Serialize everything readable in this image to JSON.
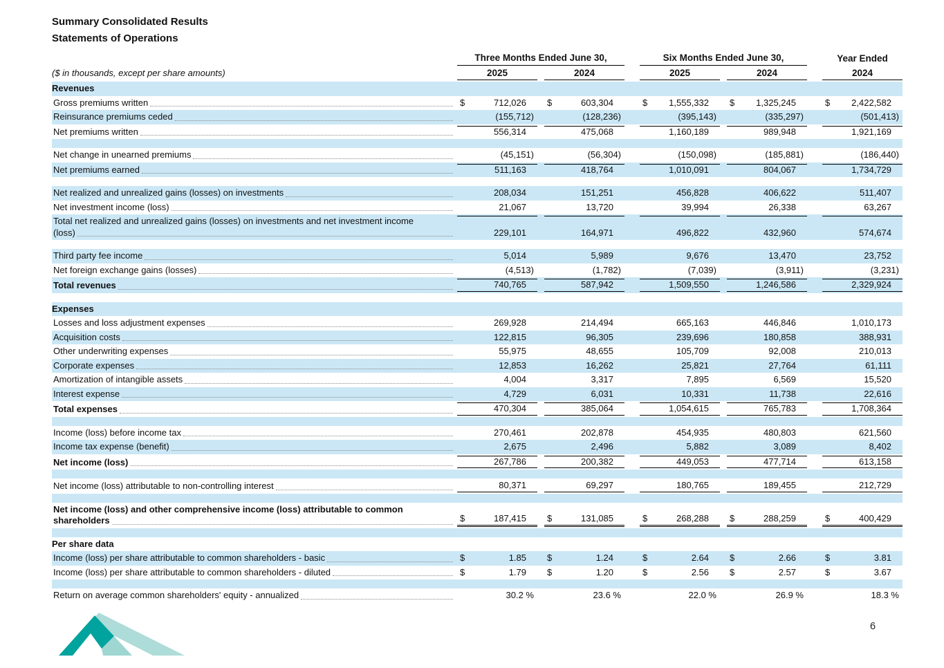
{
  "page": {
    "number": "6"
  },
  "header": {
    "title_line1": "Summary Consolidated Results",
    "title_line2": "Statements of Operations"
  },
  "colors": {
    "stripe": "#cbe7f5",
    "logo_dark": "#00a39d",
    "logo_light": "#9fd6d2"
  },
  "footer": {
    "logo": "mountain-logo"
  },
  "table": {
    "currency": "$",
    "note": "($ in thousands, except per share amounts)",
    "col_groups": [
      {
        "label": "Three Months Ended June 30,",
        "years": [
          "2025",
          "2024"
        ]
      },
      {
        "label": "Six Months Ended June 30,",
        "years": [
          "2025",
          "2024"
        ]
      },
      {
        "label": "Year Ended",
        "years": [
          "2024"
        ]
      }
    ],
    "rows": [
      {
        "type": "section",
        "label": "Revenues"
      },
      {
        "type": "data",
        "label": "Gross premiums written",
        "dollar": true,
        "values": [
          "712,026",
          "603,304",
          "1,555,332",
          "1,325,245",
          "2,422,582"
        ]
      },
      {
        "type": "data",
        "label": "Reinsurance premiums ceded",
        "values": [
          "(155,712)",
          "(128,236)",
          "(395,143)",
          "(335,297)",
          "(501,413)"
        ]
      },
      {
        "type": "data",
        "label": "Net premiums written",
        "values": [
          "556,314",
          "475,068",
          "1,160,189",
          "989,948",
          "1,921,169"
        ],
        "rule_top": true
      },
      {
        "type": "spacer"
      },
      {
        "type": "data",
        "label": "Net change in unearned premiums",
        "values": [
          "(45,151)",
          "(56,304)",
          "(150,098)",
          "(185,881)",
          "(186,440)"
        ]
      },
      {
        "type": "data",
        "label": "Net premiums earned",
        "values": [
          "511,163",
          "418,764",
          "1,010,091",
          "804,067",
          "1,734,729"
        ],
        "rule_top": true
      },
      {
        "type": "spacer"
      },
      {
        "type": "data",
        "label": "Net realized and unrealized gains (losses) on investments",
        "values": [
          "208,034",
          "151,251",
          "456,828",
          "406,622",
          "511,407"
        ]
      },
      {
        "type": "data",
        "label": "Net investment income (loss)",
        "values": [
          "21,067",
          "13,720",
          "39,994",
          "26,338",
          "63,267"
        ]
      },
      {
        "type": "data",
        "label": "Total net realized and unrealized gains (losses) on investments and net investment income",
        "label2": "(loss)",
        "values": [
          "229,101",
          "164,971",
          "496,822",
          "432,960",
          "574,674"
        ],
        "rule_top": true
      },
      {
        "type": "spacer"
      },
      {
        "type": "data",
        "label": "Third party fee income",
        "values": [
          "5,014",
          "5,989",
          "9,676",
          "13,470",
          "23,752"
        ]
      },
      {
        "type": "data",
        "label": "Net foreign exchange gains (losses)",
        "values": [
          "(4,513)",
          "(1,782)",
          "(7,039)",
          "(3,911)",
          "(3,231)"
        ]
      },
      {
        "type": "data",
        "label": "Total revenues",
        "bold": true,
        "values": [
          "740,765",
          "587,942",
          "1,509,550",
          "1,246,586",
          "2,329,924"
        ],
        "rule_top": true,
        "rule_bottom": true
      },
      {
        "type": "spacer"
      },
      {
        "type": "section",
        "label": "Expenses"
      },
      {
        "type": "data",
        "label": "Losses and loss adjustment expenses",
        "values": [
          "269,928",
          "214,494",
          "665,163",
          "446,846",
          "1,010,173"
        ]
      },
      {
        "type": "data",
        "label": "Acquisition costs",
        "values": [
          "122,815",
          "96,305",
          "239,696",
          "180,858",
          "388,931"
        ]
      },
      {
        "type": "data",
        "label": "Other underwriting expenses",
        "values": [
          "55,975",
          "48,655",
          "105,709",
          "92,008",
          "210,013"
        ]
      },
      {
        "type": "data",
        "label": "Corporate expenses",
        "values": [
          "12,853",
          "16,262",
          "25,821",
          "27,764",
          "61,111"
        ]
      },
      {
        "type": "data",
        "label": "Amortization of intangible assets",
        "values": [
          "4,004",
          "3,317",
          "7,895",
          "6,569",
          "15,520"
        ]
      },
      {
        "type": "data",
        "label": "Interest expense",
        "values": [
          "4,729",
          "6,031",
          "10,331",
          "11,738",
          "22,616"
        ]
      },
      {
        "type": "data",
        "label": "Total expenses",
        "bold": true,
        "values": [
          "470,304",
          "385,064",
          "1,054,615",
          "765,783",
          "1,708,364"
        ],
        "rule_top": true,
        "rule_bottom": true
      },
      {
        "type": "spacer"
      },
      {
        "type": "data",
        "label": "Income (loss) before income tax",
        "values": [
          "270,461",
          "202,878",
          "454,935",
          "480,803",
          "621,560"
        ]
      },
      {
        "type": "data",
        "label": "Income tax expense (benefit)",
        "values": [
          "2,675",
          "2,496",
          "5,882",
          "3,089",
          "8,402"
        ]
      },
      {
        "type": "data",
        "label": "Net income (loss)",
        "bold": true,
        "values": [
          "267,786",
          "200,382",
          "449,053",
          "477,714",
          "613,158"
        ],
        "rule_top": true,
        "rule_bottom": true
      },
      {
        "type": "spacer"
      },
      {
        "type": "data",
        "label": "Net income (loss) attributable to non-controlling interest",
        "values": [
          "80,371",
          "69,297",
          "180,765",
          "189,455",
          "212,729"
        ],
        "rule_bottom": true
      },
      {
        "type": "spacer"
      },
      {
        "type": "data",
        "label": "Net income (loss) and other comprehensive income (loss) attributable to common",
        "label2": "shareholders",
        "bold": true,
        "dollar": true,
        "values": [
          "187,415",
          "131,085",
          "268,288",
          "288,259",
          "400,429"
        ],
        "double_bottom": true
      },
      {
        "type": "spacer"
      },
      {
        "type": "section",
        "label": "Per share data"
      },
      {
        "type": "data",
        "label": "Income (loss) per share attributable to common shareholders - basic",
        "dollar": true,
        "values": [
          "1.85",
          "1.24",
          "2.64",
          "2.66",
          "3.81"
        ]
      },
      {
        "type": "data",
        "label": "Income (loss) per share attributable to common shareholders - diluted",
        "dollar": true,
        "values": [
          "1.79",
          "1.20",
          "2.56",
          "2.57",
          "3.67"
        ]
      },
      {
        "type": "spacer"
      },
      {
        "type": "data",
        "label": "Return on average common shareholders' equity - annualized",
        "values": [
          "30.2 %",
          "23.6 %",
          "22.0 %",
          "26.9 %",
          "18.3 %"
        ]
      }
    ]
  }
}
